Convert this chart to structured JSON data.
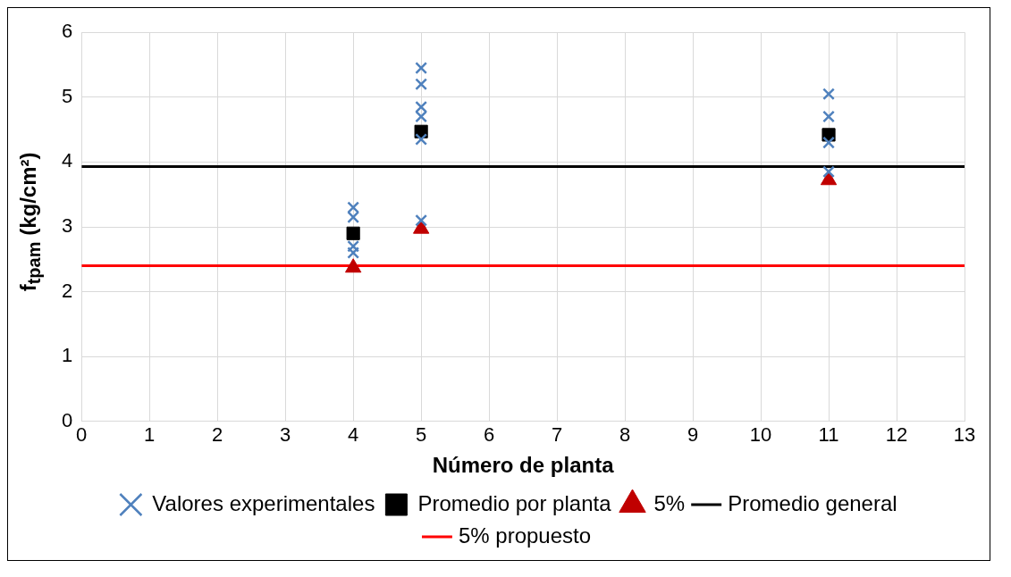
{
  "chart_data": {
    "type": "scatter",
    "xlabel": "Número de planta",
    "ylabel": "f$_{tpam}$ (kg/cm²)",
    "xlim": [
      0,
      13
    ],
    "xticks": [
      0,
      1,
      2,
      3,
      4,
      5,
      6,
      7,
      8,
      9,
      10,
      11,
      12,
      13
    ],
    "ylim": [
      0,
      6
    ],
    "yticks": [
      0,
      1,
      2,
      3,
      4,
      5,
      6
    ],
    "grid": true,
    "legend": "bottom",
    "series": [
      {
        "name": "Valores experimentales",
        "marker": "cross",
        "color": "#4f81bd",
        "x": [
          4,
          4,
          4,
          4,
          5,
          5,
          5,
          5,
          5,
          5,
          11,
          11,
          11,
          11
        ],
        "values": [
          3.3,
          3.15,
          2.7,
          2.6,
          5.45,
          5.2,
          4.85,
          4.7,
          4.35,
          3.1,
          5.05,
          4.7,
          4.3,
          3.85
        ]
      },
      {
        "name": "Promedio por planta",
        "marker": "square",
        "color": "#000000",
        "x": [
          4,
          5,
          11
        ],
        "values": [
          2.9,
          4.47,
          4.42
        ]
      },
      {
        "name": "5%",
        "marker": "triangle",
        "color": "#c00000",
        "x": [
          4,
          5,
          11
        ],
        "values": [
          2.37,
          2.97,
          3.72
        ]
      },
      {
        "name": "Promedio general",
        "type": "line",
        "marker": "none",
        "color": "#000000",
        "x": [
          0,
          13
        ],
        "values": [
          3.93,
          3.93
        ]
      },
      {
        "name": "5% propuesto",
        "type": "line",
        "marker": "none",
        "color": "#ff0000",
        "x": [
          0,
          13
        ],
        "values": [
          2.4,
          2.4
        ]
      }
    ]
  }
}
